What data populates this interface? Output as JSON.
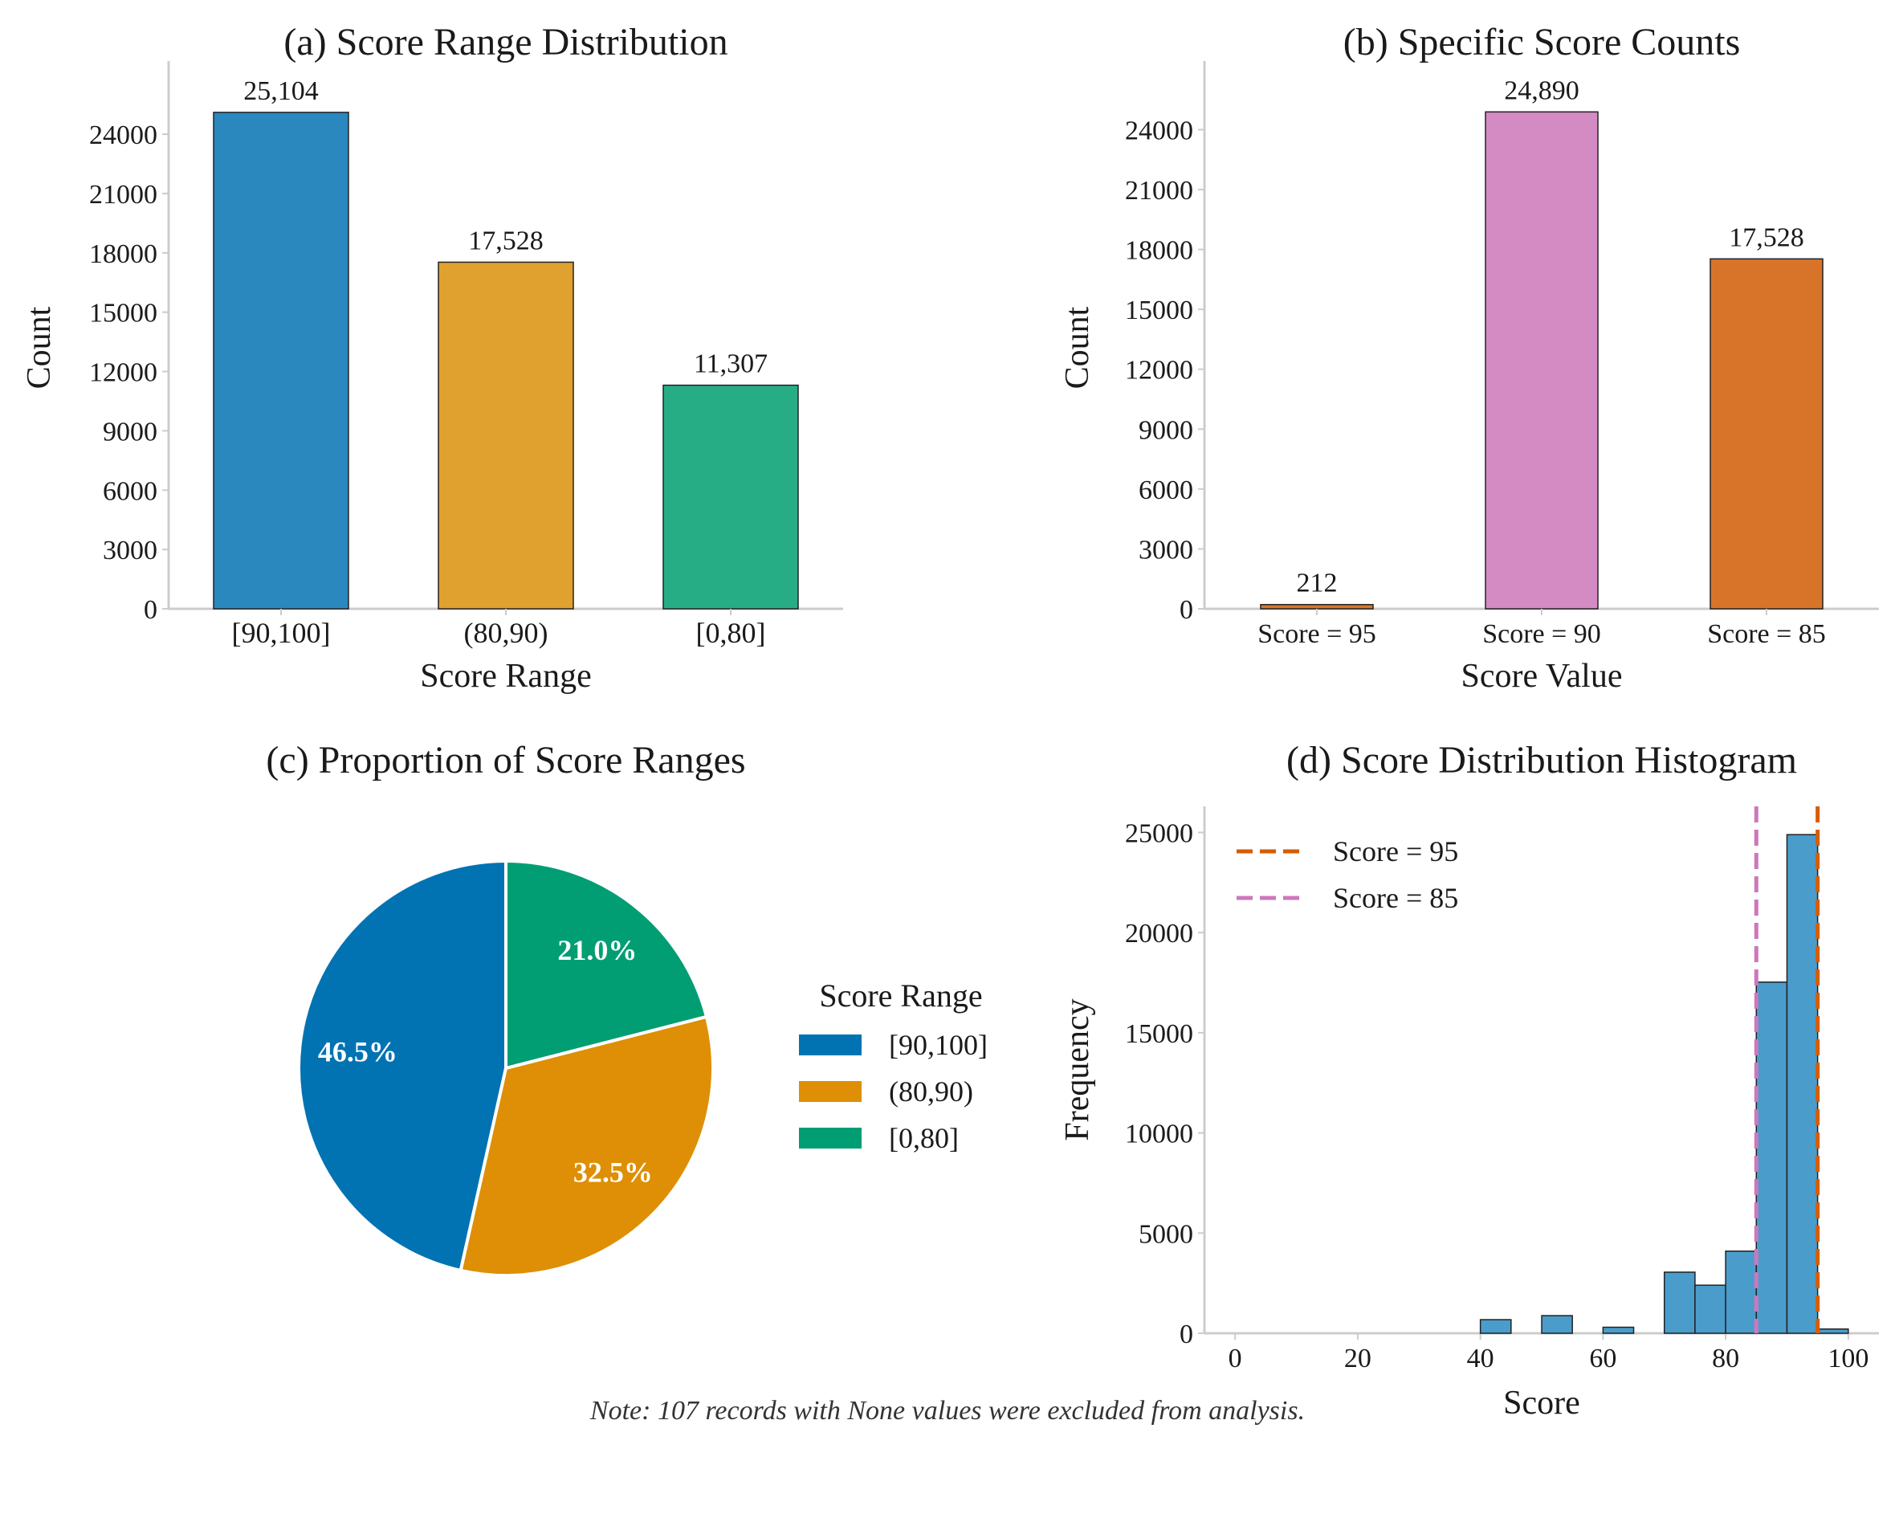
{
  "chart_data": [
    {
      "type": "bar",
      "title": "(a) Score Range Distribution",
      "xlabel": "Score Range",
      "ylabel": "Count",
      "categories": [
        "[90,100]",
        "(80,90)",
        "[0,80]"
      ],
      "values": [
        25104,
        17528,
        11307
      ],
      "value_labels": [
        "25,104",
        "17,528",
        "11,307"
      ],
      "colors": [
        "#2a88bf",
        "#e1a12e",
        "#26ad86"
      ],
      "yticks": [
        0,
        3000,
        6000,
        9000,
        12000,
        15000,
        18000,
        21000,
        24000
      ],
      "ylim": [
        0,
        26400
      ],
      "grid": false
    },
    {
      "type": "bar",
      "title": "(b) Specific Score Counts",
      "xlabel": "Score Value",
      "ylabel": "Count",
      "categories": [
        "Score = 95",
        "Score = 90",
        "Score = 85"
      ],
      "values": [
        212,
        24890,
        17528
      ],
      "value_labels": [
        "212",
        "24,890",
        "17,528"
      ],
      "colors": [
        "#d8782a",
        "#d48bc4",
        "#d8742a"
      ],
      "yticks": [
        0,
        3000,
        6000,
        9000,
        12000,
        15000,
        18000,
        21000,
        24000
      ],
      "ylim": [
        0,
        26150
      ],
      "grid": false
    },
    {
      "type": "pie",
      "title": "(c) Proportion of Score Ranges",
      "legend_title": "Score Range",
      "legend_position": "right",
      "labels": [
        "[90,100]",
        "(80,90)",
        "[0,80]"
      ],
      "values": [
        46.5,
        32.5,
        21.0
      ],
      "pct_labels": [
        "46.5%",
        "32.5%",
        "21.0%"
      ],
      "colors": [
        "#0173b2",
        "#de8f05",
        "#029e73"
      ]
    },
    {
      "type": "bar",
      "title": "(d) Score Distribution Histogram",
      "xlabel": "Score",
      "ylabel": "Frequency",
      "xlim": [
        -5,
        105
      ],
      "ylim": [
        0,
        26300
      ],
      "xticks": [
        0,
        20,
        40,
        60,
        80,
        100
      ],
      "yticks": [
        0,
        5000,
        10000,
        15000,
        20000,
        25000
      ],
      "bin_color": "#4a9ccb",
      "bins": [
        {
          "x0": 40,
          "x1": 45,
          "count": 680
        },
        {
          "x0": 50,
          "x1": 55,
          "count": 880
        },
        {
          "x0": 60,
          "x1": 65,
          "count": 300
        },
        {
          "x0": 70,
          "x1": 75,
          "count": 3050
        },
        {
          "x0": 75,
          "x1": 80,
          "count": 2400
        },
        {
          "x0": 80,
          "x1": 85,
          "count": 4100
        },
        {
          "x0": 85,
          "x1": 90,
          "count": 17528
        },
        {
          "x0": 90,
          "x1": 95,
          "count": 24890
        },
        {
          "x0": 95,
          "x1": 100,
          "count": 212
        }
      ],
      "reference_lines": [
        {
          "name": "Score = 95",
          "x": 95,
          "color": "#d55e00"
        },
        {
          "name": "Score = 85",
          "x": 85,
          "color": "#cc78bc"
        }
      ],
      "legend_position": "upper-left",
      "grid": false
    }
  ],
  "note": "Note: 107 records with None values were excluded from analysis."
}
